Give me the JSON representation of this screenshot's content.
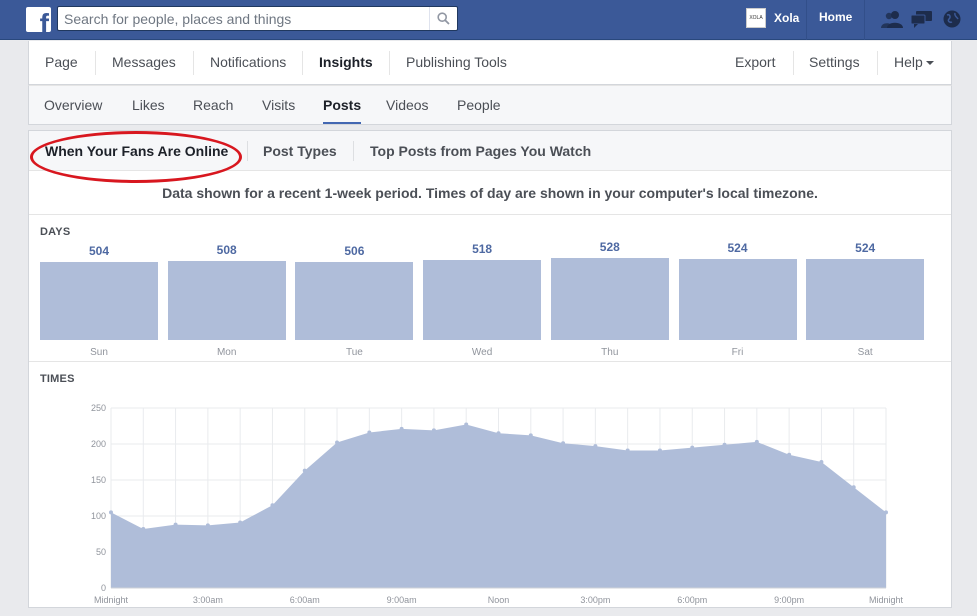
{
  "topbar": {
    "logo": "f",
    "search_placeholder": "Search for people, places and things",
    "account_avatar_text": "XOLA",
    "account_name": "Xola",
    "home_label": "Home",
    "icons": [
      "search-icon",
      "friends-icon",
      "messages-icon",
      "globe-icon"
    ]
  },
  "page_nav": {
    "items": [
      {
        "label": "Page"
      },
      {
        "label": "Messages"
      },
      {
        "label": "Notifications"
      },
      {
        "label": "Insights",
        "active": true
      },
      {
        "label": "Publishing Tools"
      }
    ],
    "right_items": [
      {
        "label": "Export"
      },
      {
        "label": "Settings"
      },
      {
        "label": "Help"
      }
    ]
  },
  "sub_nav": {
    "items": [
      {
        "label": "Overview"
      },
      {
        "label": "Likes"
      },
      {
        "label": "Reach"
      },
      {
        "label": "Visits"
      },
      {
        "label": "Posts",
        "active": true
      },
      {
        "label": "Videos"
      },
      {
        "label": "People"
      }
    ]
  },
  "post_tabs": {
    "items": [
      {
        "label": "When Your Fans Are Online",
        "active": true
      },
      {
        "label": "Post Types"
      },
      {
        "label": "Top Posts from Pages You Watch"
      }
    ],
    "highlight_color": "#d8171f"
  },
  "notice": "Data shown for a recent 1-week period. Times of day are shown in your computer's local timezone.",
  "days_section": {
    "label": "DAYS"
  },
  "times_section": {
    "label": "TIMES"
  },
  "chart_data": [
    {
      "type": "bar",
      "categories": [
        "Sun",
        "Mon",
        "Tue",
        "Wed",
        "Thu",
        "Fri",
        "Sat"
      ],
      "values": [
        504,
        508,
        506,
        518,
        528,
        524,
        524
      ],
      "title": "DAYS",
      "color": "#afbdd9",
      "value_label_color": "#4e69a2"
    },
    {
      "type": "area",
      "title": "TIMES",
      "x": [
        "Midnight",
        "1:00am",
        "2:00am",
        "3:00am",
        "4:00am",
        "5:00am",
        "6:00am",
        "7:00am",
        "8:00am",
        "9:00am",
        "10:00am",
        "11:00am",
        "Noon",
        "1:00pm",
        "2:00pm",
        "3:00pm",
        "4:00pm",
        "5:00pm",
        "6:00pm",
        "7:00pm",
        "8:00pm",
        "9:00pm",
        "10:00pm",
        "11:00pm",
        "Midnight"
      ],
      "values": [
        105,
        82,
        88,
        87,
        91,
        115,
        163,
        202,
        216,
        221,
        219,
        227,
        215,
        212,
        201,
        197,
        191,
        191,
        195,
        199,
        203,
        185,
        175,
        140,
        105
      ],
      "x_tick_labels": [
        "Midnight",
        "3:00am",
        "6:00am",
        "9:00am",
        "Noon",
        "3:00pm",
        "6:00pm",
        "9:00pm",
        "Midnight"
      ],
      "y_ticks": [
        0,
        50,
        100,
        150,
        200,
        250
      ],
      "ylim": [
        0,
        250
      ],
      "grid": true,
      "color": "#afbdd9"
    }
  ]
}
